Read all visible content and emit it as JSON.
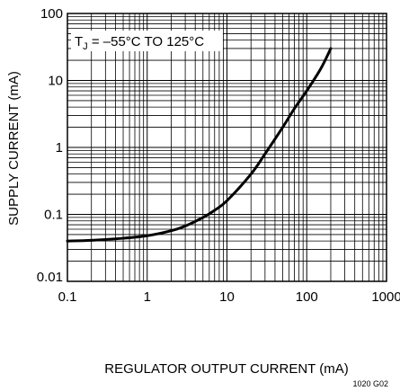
{
  "chart_data": {
    "type": "line",
    "xlabel": "REGULATOR OUTPUT CURRENT (mA)",
    "ylabel": "SUPPLY CURRENT (mA)",
    "x_scale": "log",
    "y_scale": "log",
    "xlim": [
      0.1,
      1000
    ],
    "ylim": [
      0.01,
      100
    ],
    "x_ticks": [
      "0.1",
      "1",
      "10",
      "100",
      "1000"
    ],
    "y_ticks": [
      "0.01",
      "0.1",
      "1",
      "10",
      "100"
    ],
    "grid": true,
    "annotation": {
      "prefix": "T",
      "subscript": "J",
      "text": " = –55°C TO 125°C"
    },
    "figure_code": "1020 G02",
    "series": [
      {
        "x": [
          0.1,
          0.2,
          0.5,
          1,
          2,
          3,
          5,
          7,
          10,
          20,
          30,
          50,
          70,
          100,
          150,
          200
        ],
        "y": [
          0.04,
          0.041,
          0.044,
          0.048,
          0.057,
          0.067,
          0.09,
          0.115,
          0.16,
          0.4,
          0.8,
          2.0,
          3.8,
          7.0,
          15,
          30
        ]
      }
    ]
  }
}
